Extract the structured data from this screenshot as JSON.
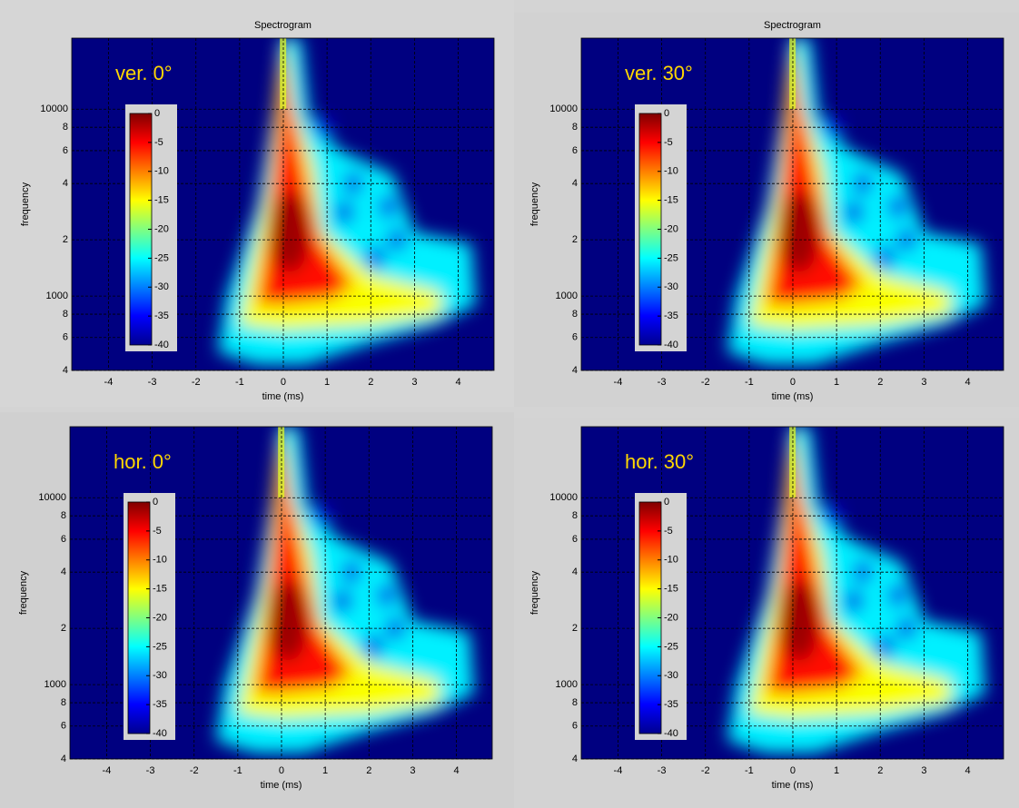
{
  "chart_data": [
    {
      "type": "heatmap",
      "title": "Spectrogram",
      "annotation": "ver. 0°",
      "xlabel": "time (ms)",
      "ylabel": "frequency",
      "xlim": [
        -4.84,
        4.82
      ],
      "xticks": [
        -4,
        -3,
        -2,
        -1,
        0,
        1,
        2,
        3,
        4
      ],
      "ylim": [
        400,
        24000
      ],
      "ylog": true,
      "yticks": [
        {
          "value": 400,
          "label": "4"
        },
        {
          "value": 600,
          "label": "6"
        },
        {
          "value": 800,
          "label": "8"
        },
        1000,
        {
          "value": 2000,
          "label": "2"
        },
        {
          "value": 4000,
          "label": "4"
        },
        {
          "value": 6000,
          "label": "6"
        },
        {
          "value": 8000,
          "label": "8"
        },
        10000
      ],
      "grid": true,
      "colormap": "jet",
      "clim": [
        -40,
        0
      ],
      "cticks": [
        0,
        -5,
        -10,
        -15,
        -20,
        -25,
        -30,
        -35,
        -40
      ]
    },
    {
      "type": "heatmap",
      "title": "Spectrogram",
      "annotation": "ver. 30°",
      "xlabel": "time (ms)",
      "ylabel": "frequency",
      "xlim": [
        -4.84,
        4.82
      ],
      "xticks": [
        -4,
        -3,
        -2,
        -1,
        0,
        1,
        2,
        3,
        4
      ],
      "ylim": [
        400,
        24000
      ],
      "ylog": true,
      "yticks": [
        {
          "value": 400,
          "label": "4"
        },
        {
          "value": 600,
          "label": "6"
        },
        {
          "value": 800,
          "label": "8"
        },
        1000,
        {
          "value": 2000,
          "label": "2"
        },
        {
          "value": 4000,
          "label": "4"
        },
        {
          "value": 6000,
          "label": "6"
        },
        {
          "value": 8000,
          "label": "8"
        },
        10000
      ],
      "grid": true,
      "colormap": "jet",
      "clim": [
        -40,
        0
      ],
      "cticks": [
        0,
        -5,
        -10,
        -15,
        -20,
        -25,
        -30,
        -35,
        -40
      ]
    },
    {
      "type": "heatmap",
      "annotation": "hor. 0°",
      "xlabel": "time (ms)",
      "ylabel": "frequency",
      "xlim": [
        -4.84,
        4.82
      ],
      "xticks": [
        -4,
        -3,
        -2,
        -1,
        0,
        1,
        2,
        3,
        4
      ],
      "ylim": [
        400,
        24000
      ],
      "ylog": true,
      "yticks": [
        {
          "value": 400,
          "label": "4"
        },
        {
          "value": 600,
          "label": "6"
        },
        {
          "value": 800,
          "label": "8"
        },
        1000,
        {
          "value": 2000,
          "label": "2"
        },
        {
          "value": 4000,
          "label": "4"
        },
        {
          "value": 6000,
          "label": "6"
        },
        {
          "value": 8000,
          "label": "8"
        },
        10000
      ],
      "grid": true,
      "colormap": "jet",
      "clim": [
        -40,
        0
      ],
      "cticks": [
        0,
        -5,
        -10,
        -15,
        -20,
        -25,
        -30,
        -35,
        -40
      ]
    },
    {
      "type": "heatmap",
      "annotation": "hor. 30°",
      "xlabel": "time (ms)",
      "ylabel": "frequency",
      "xlim": [
        -4.84,
        4.82
      ],
      "xticks": [
        -4,
        -3,
        -2,
        -1,
        0,
        1,
        2,
        3,
        4
      ],
      "ylim": [
        400,
        24000
      ],
      "ylog": true,
      "yticks": [
        {
          "value": 400,
          "label": "4"
        },
        {
          "value": 600,
          "label": "6"
        },
        {
          "value": 800,
          "label": "8"
        },
        1000,
        {
          "value": 2000,
          "label": "2"
        },
        {
          "value": 4000,
          "label": "4"
        },
        {
          "value": 6000,
          "label": "6"
        },
        {
          "value": 8000,
          "label": "8"
        },
        10000
      ],
      "grid": true,
      "colormap": "jet",
      "clim": [
        -40,
        0
      ],
      "cticks": [
        0,
        -5,
        -10,
        -15,
        -20,
        -25,
        -30,
        -35,
        -40
      ]
    }
  ]
}
